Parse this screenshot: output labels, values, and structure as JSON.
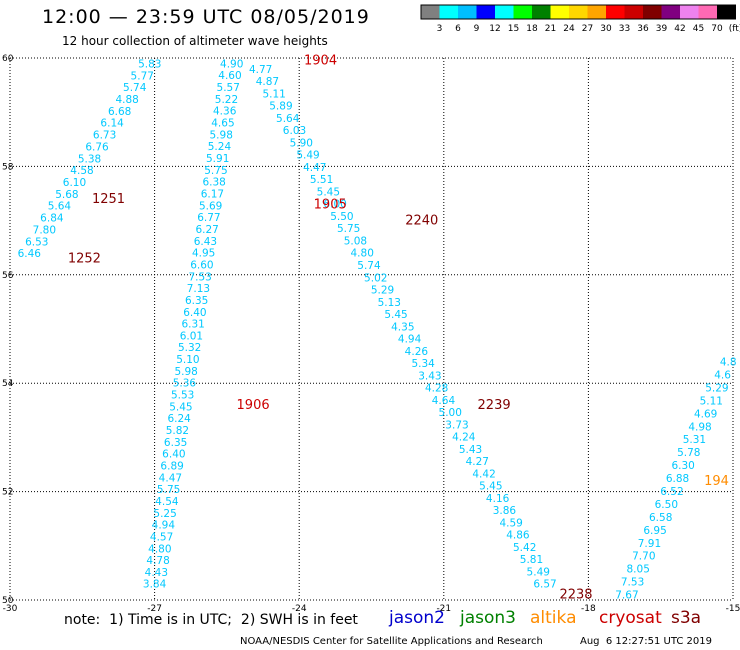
{
  "header": {
    "title": "12:00 — 23:59 UTC 08/05/2019",
    "subtitle": "12 hour collection of altimeter wave heights"
  },
  "legend": {
    "colors": [
      "#808080",
      "#00ffff",
      "#00bfff",
      "#0000ff",
      "#00ffff",
      "#00ff00",
      "#008000",
      "#ffff00",
      "#ffd700",
      "#ffa500",
      "#ff0000",
      "#cc0000",
      "#800000",
      "#800080",
      "#ee82ee",
      "#ff69b4",
      "#000000"
    ],
    "labels": [
      "3",
      "6",
      "9",
      "12",
      "15",
      "18",
      "21",
      "24",
      "27",
      "30",
      "33",
      "36",
      "39",
      "42",
      "45",
      "70",
      "(ft)"
    ]
  },
  "axes": {
    "x_ticks": [
      "-30",
      "-27",
      "-24",
      "-21",
      "-18",
      "-15"
    ],
    "y_ticks": [
      "60",
      "58",
      "56",
      "54",
      "52",
      "50"
    ],
    "x_range": [
      -30,
      -15
    ],
    "y_range": [
      50,
      60
    ]
  },
  "tracks": [
    {
      "values": [
        "5.83",
        "5.77",
        "5.74",
        "4.88",
        "6.68",
        "6.14",
        "6.73",
        "6.76",
        "5.38",
        "4.58",
        "6.10",
        "5.68",
        "5.64",
        "6.84",
        "7.80",
        "6.53",
        "6.46"
      ],
      "lon_start": -27.1,
      "lat_start": 59.9,
      "lon_end": -29.6,
      "lat_end": 56.4
    },
    {
      "values": [
        "4.90",
        "4.60",
        "5.57",
        "5.22",
        "4.36",
        "4.65",
        "5.98",
        "5.24",
        "5.91",
        "5.75",
        "6.38",
        "6.17",
        "5.69",
        "6.77",
        "6.27",
        "6.43",
        "4.95",
        "6.60",
        "7.53",
        "7.13",
        "6.35",
        "6.40",
        "6.31",
        "6.01",
        "5.32",
        "5.10",
        "5.98",
        "5.36",
        "5.53",
        "5.45",
        "6.24",
        "5.82",
        "6.35",
        "6.40",
        "6.89",
        "4.47",
        "5.75",
        "4.54",
        "5.25",
        "4.94",
        "4.57",
        "4.80",
        "4.78",
        "4.43",
        "3.84"
      ],
      "lon_start": -25.4,
      "lat_start": 59.9,
      "lon_end": -27.0,
      "lat_end": 50.3
    },
    {
      "values": [
        "4.77",
        "4.87",
        "5.11",
        "5.89",
        "5.64",
        "6.03",
        "5.90",
        "5.49",
        "4.47",
        "5.51",
        "5.45",
        "6.00",
        "5.50",
        "5.75",
        "5.08",
        "4.80",
        "5.74",
        "5.02",
        "5.29",
        "5.13",
        "5.45",
        "4.35",
        "4.94",
        "4.26",
        "5.34",
        "3.43",
        "4.28",
        "4.64",
        "5.00",
        "3.73",
        "4.24",
        "5.43",
        "4.27",
        "4.42",
        "5.45",
        "4.16",
        "3.86",
        "4.59",
        "4.86",
        "5.42",
        "5.81",
        "5.49",
        "6.57"
      ],
      "lon_start": -24.8,
      "lat_start": 59.8,
      "lon_end": -18.9,
      "lat_end": 50.3
    },
    {
      "values": [
        "4.8",
        "4.6",
        "5.29",
        "5.11",
        "4.69",
        "4.98",
        "5.31",
        "5.78",
        "6.30",
        "6.88",
        "6.52",
        "6.50",
        "6.58",
        "6.95",
        "7.91",
        "7.70",
        "8.05",
        "7.53",
        "7.67"
      ],
      "lon_start": -15.1,
      "lat_start": 54.4,
      "lon_end": -17.2,
      "lat_end": 50.1
    }
  ],
  "time_labels": [
    {
      "text": "1904",
      "lon": -23.9,
      "lat": 59.95,
      "color": "#cc0000"
    },
    {
      "text": "1905",
      "lon": -23.7,
      "lat": 57.3,
      "color": "#cc0000"
    },
    {
      "text": "1906",
      "lon": -25.3,
      "lat": 53.6,
      "color": "#cc0000"
    },
    {
      "text": "1251",
      "lon": -28.3,
      "lat": 57.4,
      "color": "#800000"
    },
    {
      "text": "1252",
      "lon": -28.8,
      "lat": 56.3,
      "color": "#800000"
    },
    {
      "text": "2240",
      "lon": -21.8,
      "lat": 57.0,
      "color": "#800000"
    },
    {
      "text": "2239",
      "lon": -20.3,
      "lat": 53.6,
      "color": "#800000"
    },
    {
      "text": "2238",
      "lon": -18.6,
      "lat": 50.1,
      "color": "#800000"
    },
    {
      "text": "194",
      "lon": -15.6,
      "lat": 52.2,
      "color": "#ff8c00"
    }
  ],
  "footer": {
    "note": "note:  1) Time is in UTC;  2) SWH is in feet",
    "satellites": [
      {
        "name": "jason2",
        "color": "#0000cc"
      },
      {
        "name": "jason3",
        "color": "#008000"
      },
      {
        "name": "altika",
        "color": "#ff8c00"
      },
      {
        "name": "cryosat",
        "color": "#cc0000"
      },
      {
        "name": "s3a",
        "color": "#800000"
      }
    ],
    "credit": "NOAA/NESDIS Center for Satellite Applications and Research",
    "timestamp": "Aug  6 12:27:51 UTC 2019"
  }
}
